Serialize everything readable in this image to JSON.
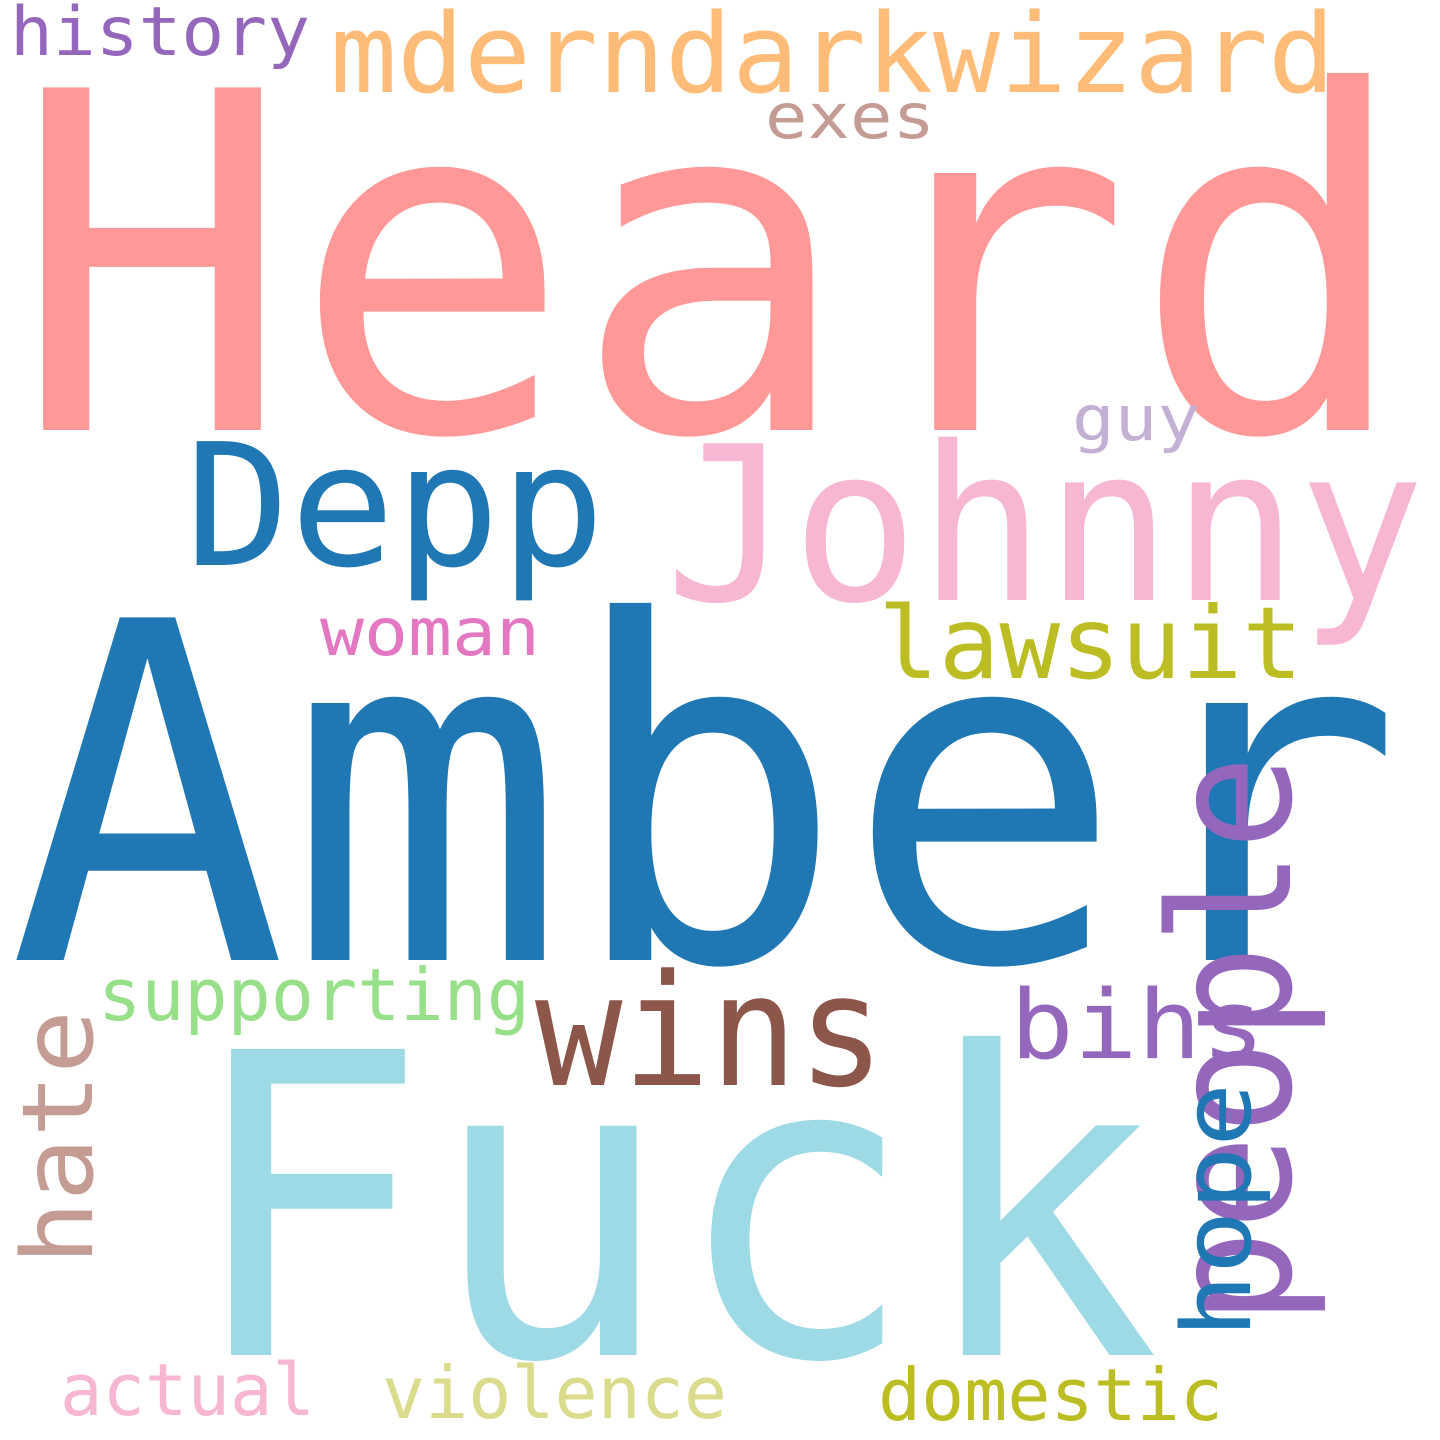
{
  "words": [
    {
      "text": "Heard",
      "color": "#ff9896",
      "orientation": "horizontal"
    },
    {
      "text": "Amber",
      "color": "#1f77b4",
      "orientation": "horizontal"
    },
    {
      "text": "Fuck",
      "color": "#9edae5",
      "orientation": "horizontal"
    },
    {
      "text": "Johnny",
      "color": "#f7b6d2",
      "orientation": "horizontal"
    },
    {
      "text": "Depp",
      "color": "#1f77b4",
      "orientation": "horizontal"
    },
    {
      "text": "mderndarkwizard",
      "color": "#ffbb78",
      "orientation": "horizontal"
    },
    {
      "text": "people",
      "color": "#9467bd",
      "orientation": "vertical"
    },
    {
      "text": "wins",
      "color": "#8c564b",
      "orientation": "horizontal"
    },
    {
      "text": "lawsuit",
      "color": "#bcbd22",
      "orientation": "horizontal"
    },
    {
      "text": "hate",
      "color": "#c49c94",
      "orientation": "vertical"
    },
    {
      "text": "hope",
      "color": "#1f77b4",
      "orientation": "vertical"
    },
    {
      "text": "bihs",
      "color": "#9467bd",
      "orientation": "horizontal"
    },
    {
      "text": "supporting",
      "color": "#98df8a",
      "orientation": "horizontal"
    },
    {
      "text": "woman",
      "color": "#e377c2",
      "orientation": "horizontal"
    },
    {
      "text": "domestic",
      "color": "#bcbd22",
      "orientation": "horizontal"
    },
    {
      "text": "violence",
      "color": "#dbdb8d",
      "orientation": "horizontal"
    },
    {
      "text": "actual",
      "color": "#f7b6d2",
      "orientation": "horizontal"
    },
    {
      "text": "history",
      "color": "#9467bd",
      "orientation": "horizontal"
    },
    {
      "text": "exes",
      "color": "#c49c94",
      "orientation": "horizontal"
    },
    {
      "text": "guy",
      "color": "#c5b0d5",
      "orientation": "horizontal"
    }
  ]
}
